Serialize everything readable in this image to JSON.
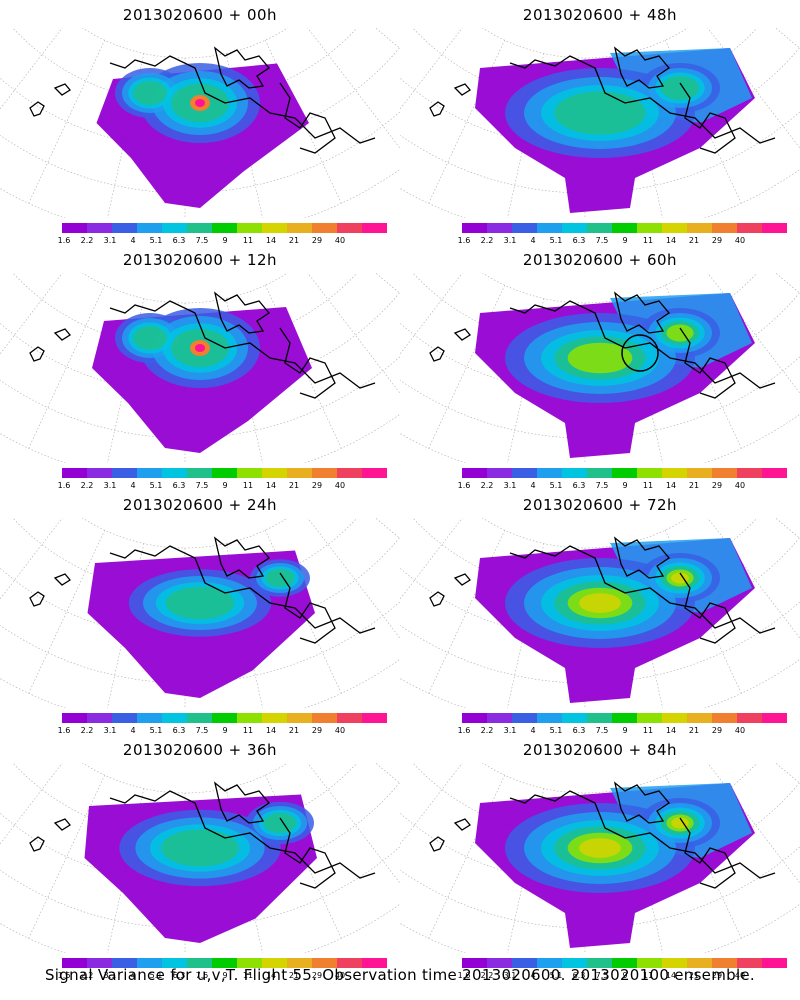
{
  "panels": [
    {
      "title": "2013020600 + 00h",
      "intensity": 0.35,
      "spread": 0.45,
      "hotspot": true,
      "circle": false
    },
    {
      "title": "2013020600 + 48h",
      "intensity": 0.45,
      "spread": 1.0,
      "hotspot": false,
      "circle": false
    },
    {
      "title": "2013020600 + 12h",
      "intensity": 0.5,
      "spread": 0.6,
      "hotspot": true,
      "circle": false
    },
    {
      "title": "2013020600 + 60h",
      "intensity": 0.55,
      "spread": 1.0,
      "hotspot": false,
      "circle": true
    },
    {
      "title": "2013020600 + 24h",
      "intensity": 0.45,
      "spread": 0.75,
      "hotspot": false,
      "circle": false
    },
    {
      "title": "2013020600 + 72h",
      "intensity": 0.7,
      "spread": 1.0,
      "hotspot": false,
      "circle": false
    },
    {
      "title": "2013020600 + 36h",
      "intensity": 0.45,
      "spread": 0.85,
      "hotspot": false,
      "circle": false
    },
    {
      "title": "2013020600 + 84h",
      "intensity": 0.75,
      "spread": 1.0,
      "hotspot": false,
      "circle": false
    }
  ],
  "colorbar": {
    "colors": [
      "#9400d3",
      "#8a2be2",
      "#3a5fe5",
      "#1ea0ee",
      "#00c4e0",
      "#1fc08a",
      "#00cc00",
      "#8ee000",
      "#d4d400",
      "#e8b020",
      "#f08030",
      "#f04060",
      "#ff1493"
    ],
    "labels": [
      "1.6",
      "2.2",
      "3.1",
      "4",
      "5.1",
      "6.3",
      "7.5",
      "9",
      "11",
      "14",
      "21",
      "29",
      "40"
    ]
  },
  "caption": "Signal Variance for u,v,T. Flight 55. Observation time 2013020600. 2013020100 ensemble."
}
